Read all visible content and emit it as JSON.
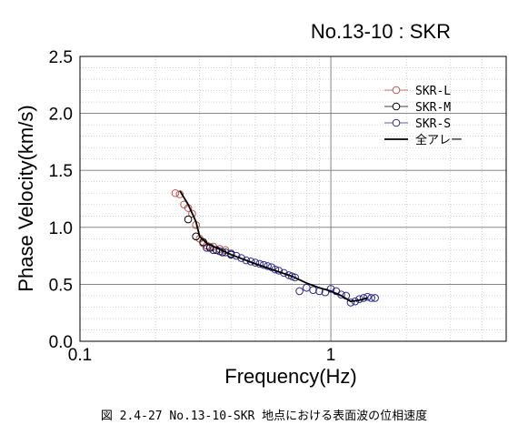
{
  "chart_data": {
    "type": "scatter",
    "title": "No.13-10 : SKR",
    "xlabel": "Frequency(Hz)",
    "ylabel": "Phase Velocity(km/s)",
    "x_scale": "log",
    "xlim": [
      0.1,
      5
    ],
    "ylim": [
      0,
      2.5
    ],
    "x_ticks": [
      {
        "value": 0.1,
        "label": "0.1"
      },
      {
        "value": 1,
        "label": "1"
      }
    ],
    "y_ticks": [
      {
        "value": 0,
        "label": "0.0"
      },
      {
        "value": 0.5,
        "label": "0.5"
      },
      {
        "value": 1.0,
        "label": "1.0"
      },
      {
        "value": 1.5,
        "label": "1.5"
      },
      {
        "value": 2.0,
        "label": "2.0"
      },
      {
        "value": 2.5,
        "label": "2.5"
      }
    ],
    "grid": true,
    "legend_position": "top-right",
    "series": [
      {
        "name": "SKR-L",
        "color": "#c0504d",
        "marker": "open-circle",
        "x": [
          0.24,
          0.25,
          0.26,
          0.27,
          0.28,
          0.29,
          0.3,
          0.31,
          0.32,
          0.33,
          0.34,
          0.36,
          0.38
        ],
        "y": [
          1.3,
          1.29,
          1.2,
          1.17,
          1.12,
          1.02,
          0.9,
          0.86,
          0.84,
          0.83,
          0.83,
          0.81,
          0.8
        ]
      },
      {
        "name": "SKR-M",
        "color": "#000000",
        "marker": "open-circle",
        "x": [
          0.27,
          0.29,
          0.31,
          0.33,
          0.35,
          0.37,
          0.4
        ],
        "y": [
          1.07,
          0.92,
          0.87,
          0.82,
          0.8,
          0.78,
          0.76
        ]
      },
      {
        "name": "SKR-S",
        "color": "#2a2a8c",
        "marker": "open-circle",
        "x": [
          0.32,
          0.34,
          0.36,
          0.38,
          0.4,
          0.42,
          0.44,
          0.46,
          0.48,
          0.5,
          0.52,
          0.54,
          0.56,
          0.58,
          0.6,
          0.62,
          0.65,
          0.68,
          0.7,
          0.72,
          0.75,
          0.8,
          0.85,
          0.9,
          0.95,
          1.0,
          1.05,
          1.1,
          1.15,
          1.2,
          1.25,
          1.3,
          1.35,
          1.4,
          1.45,
          1.5
        ],
        "y": [
          0.82,
          0.8,
          0.79,
          0.78,
          0.77,
          0.75,
          0.73,
          0.71,
          0.7,
          0.69,
          0.68,
          0.67,
          0.66,
          0.65,
          0.63,
          0.62,
          0.6,
          0.58,
          0.57,
          0.56,
          0.44,
          0.47,
          0.45,
          0.44,
          0.43,
          0.46,
          0.44,
          0.41,
          0.4,
          0.34,
          0.35,
          0.37,
          0.38,
          0.39,
          0.38,
          0.38
        ]
      },
      {
        "name": "全アレー",
        "color": "#000000",
        "marker": "line",
        "x": [
          0.25,
          0.27,
          0.29,
          0.3,
          0.32,
          0.35,
          0.4,
          0.5,
          0.6,
          0.7,
          0.8,
          0.9,
          1.0,
          1.1,
          1.2,
          1.3,
          1.4
        ],
        "y": [
          1.32,
          1.2,
          1.05,
          0.92,
          0.86,
          0.82,
          0.76,
          0.68,
          0.62,
          0.57,
          0.51,
          0.47,
          0.44,
          0.4,
          0.35,
          0.36,
          0.38
        ]
      }
    ]
  },
  "caption": "図 2.4-27  No.13-10-SKR 地点における表面波の位相速度"
}
